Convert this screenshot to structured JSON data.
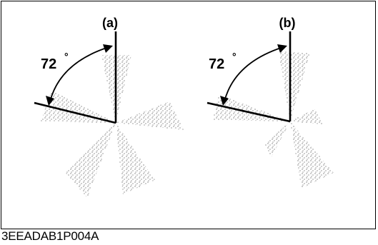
{
  "panels": [
    {
      "label": "(a)",
      "angle_label": "72",
      "degree_symbol": "°"
    },
    {
      "label": "(b)",
      "angle_label": "72",
      "degree_symbol": "°"
    }
  ],
  "figure_code": "3EEADAB1P004A",
  "colors": {
    "ink": "#000000",
    "background": "#ffffff"
  }
}
